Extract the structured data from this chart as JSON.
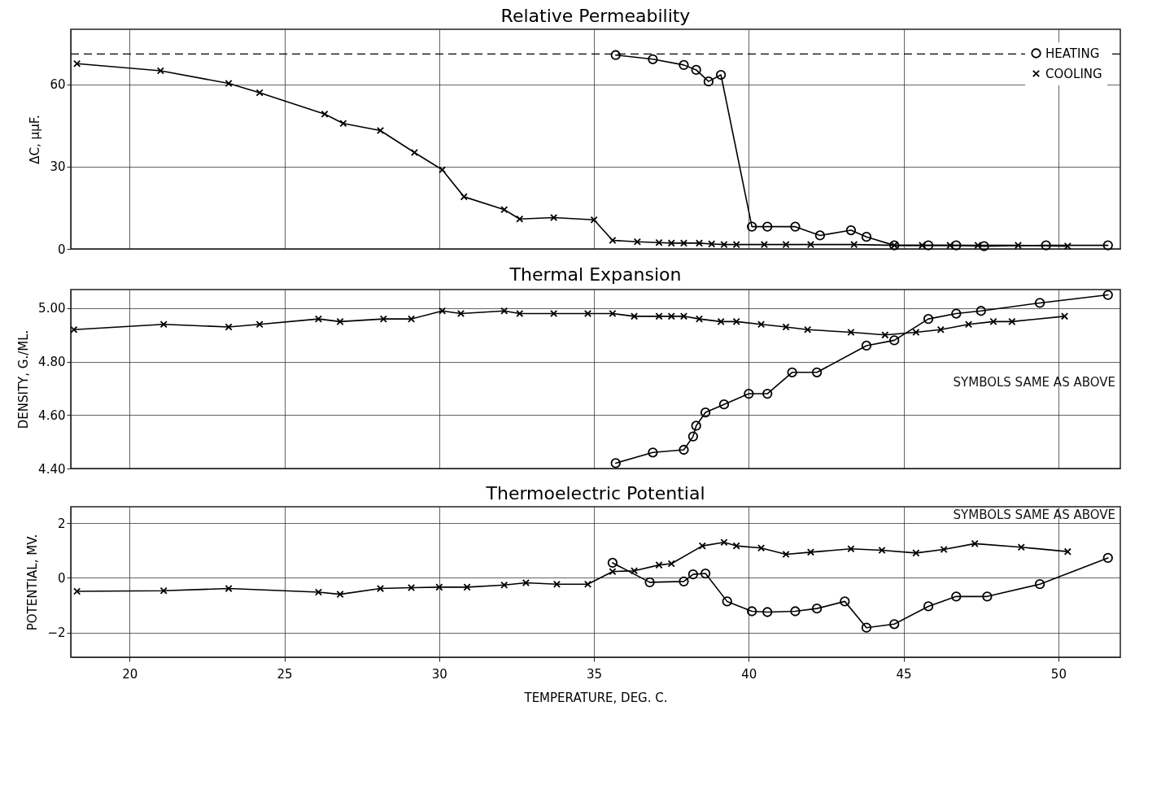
{
  "chart_data": [
    {
      "type": "line",
      "title": "Relative Permeability",
      "ylabel": "ΔC,   μμF.",
      "xlim": [
        18.1,
        52
      ],
      "xticks": [
        20,
        25,
        30,
        35,
        40,
        45,
        50
      ],
      "ylim": [
        0,
        80
      ],
      "yticks": [
        0,
        30,
        60
      ],
      "grid": true,
      "tick_labels": "y",
      "legend": "top right",
      "ref_lines": [
        {
          "axis": "y",
          "value": 71,
          "color": "#000000",
          "line_style": "dashed"
        }
      ],
      "series": [
        {
          "name": "HEATING",
          "color": "#000000",
          "marker": "circle",
          "x": [
            35.7,
            36.9,
            37.9,
            38.3,
            38.7,
            39.1,
            40.1,
            40.6,
            41.5,
            42.3,
            43.3,
            43.8,
            44.7,
            45.8,
            46.7,
            47.6,
            49.6,
            51.6
          ],
          "values": [
            70.6,
            69.1,
            67,
            65.2,
            61,
            63.4,
            8.1,
            8.1,
            8.1,
            4.9,
            6.8,
            4.4,
            1.3,
            1.3,
            1.3,
            1,
            1.3,
            1.3
          ]
        },
        {
          "name": "COOLING",
          "color": "#000000",
          "marker": "cross",
          "x": [
            18.3,
            21,
            23.2,
            24.2,
            26.3,
            26.9,
            28.1,
            29.2,
            30.1,
            30.8,
            32.1,
            32.6,
            33.7,
            35,
            35.6,
            36.4,
            37.1,
            37.5,
            37.9,
            38.4,
            38.8,
            39.2,
            39.6,
            40.5,
            41.2,
            42,
            43.4,
            44.7,
            45.6,
            46.5,
            47.4,
            48.7,
            50.3
          ],
          "values": [
            67.5,
            64.9,
            60.3,
            56.9,
            49.1,
            45.7,
            43.1,
            35.1,
            28.8,
            19,
            14.3,
            10.9,
            11.4,
            10.6,
            3.1,
            2.6,
            2.3,
            2.1,
            2.1,
            2.1,
            1.8,
            1.6,
            1.6,
            1.6,
            1.6,
            1.6,
            1.6,
            1.3,
            1.3,
            1.3,
            1.3,
            1.3,
            1
          ]
        }
      ]
    },
    {
      "type": "line",
      "title": "Thermal Expansion",
      "ylabel": "DENSITY, G./ML.",
      "xlim": [
        18.1,
        52
      ],
      "xticks": [
        20,
        25,
        30,
        35,
        40,
        45,
        50
      ],
      "ylim": [
        4.4,
        5.07
      ],
      "yticks": [
        {
          "value": 4.4,
          "label": "4.40"
        },
        {
          "value": 4.6,
          "label": "4.60"
        },
        {
          "value": 4.8,
          "label": "4.80"
        },
        {
          "value": 5,
          "label": "5.00"
        }
      ],
      "grid": true,
      "tick_labels": "y",
      "annotations": [
        "SYMBOLS SAME AS ABOVE"
      ],
      "series": [
        {
          "color": "#000000",
          "marker": "circle",
          "x": [
            35.7,
            36.9,
            37.9,
            38.2,
            38.3,
            38.6,
            39.2,
            40,
            40.6,
            41.4,
            42.2,
            43.8,
            44.7,
            45.8,
            46.7,
            47.5,
            49.4,
            51.6
          ],
          "values": [
            4.42,
            4.46,
            4.47,
            4.52,
            4.56,
            4.61,
            4.64,
            4.68,
            4.68,
            4.76,
            4.76,
            4.86,
            4.88,
            4.96,
            4.98,
            4.99,
            5.02,
            5.05
          ]
        },
        {
          "color": "#000000",
          "marker": "cross",
          "x": [
            18.2,
            21.1,
            23.2,
            24.2,
            26.1,
            26.8,
            28.2,
            29.1,
            30.1,
            30.7,
            32.1,
            32.6,
            33.7,
            34.8,
            35.6,
            36.3,
            37.1,
            37.5,
            37.9,
            38.4,
            39.1,
            39.6,
            40.4,
            41.2,
            41.9,
            43.3,
            44.4,
            45.4,
            46.2,
            47.1,
            47.9,
            48.5,
            50.2
          ],
          "values": [
            4.92,
            4.94,
            4.93,
            4.94,
            4.96,
            4.95,
            4.96,
            4.96,
            4.99,
            4.98,
            4.99,
            4.98,
            4.98,
            4.98,
            4.98,
            4.97,
            4.97,
            4.97,
            4.97,
            4.96,
            4.95,
            4.95,
            4.94,
            4.93,
            4.92,
            4.91,
            4.9,
            4.91,
            4.92,
            4.94,
            4.95,
            4.95,
            4.97
          ]
        }
      ]
    },
    {
      "type": "line",
      "title": "Thermoelectric Potential",
      "xlabel": "TEMPERATURE, DEG. C.",
      "ylabel": "POTENTIAL, MV.",
      "xlim": [
        18.1,
        52
      ],
      "xticks": [
        20,
        25,
        30,
        35,
        40,
        45,
        50
      ],
      "ylim": [
        -2.9,
        2.6
      ],
      "yticks": [
        -2,
        0,
        2
      ],
      "grid": true,
      "annotations": [
        "SYMBOLS SAME AS ABOVE"
      ],
      "series": [
        {
          "color": "#000000",
          "marker": "circle",
          "x": [
            35.6,
            36.8,
            37.9,
            38.2,
            38.6,
            39.3,
            40.1,
            40.6,
            41.5,
            42.2,
            43.1,
            43.8,
            44.7,
            45.8,
            46.7,
            47.7,
            49.4,
            51.6
          ],
          "values": [
            0.55,
            -0.16,
            -0.13,
            0.13,
            0.16,
            -0.86,
            -1.22,
            -1.25,
            -1.22,
            -1.12,
            -0.86,
            -1.82,
            -1.69,
            -1.04,
            -0.68,
            -0.68,
            -0.23,
            0.73
          ]
        },
        {
          "color": "#000000",
          "marker": "cross",
          "x": [
            18.3,
            21.1,
            23.2,
            26.1,
            26.8,
            28.1,
            29.1,
            30,
            30.9,
            32.1,
            32.8,
            33.8,
            34.8,
            35.6,
            36.3,
            37.1,
            37.5,
            38.5,
            39.2,
            39.6,
            40.4,
            41.2,
            42,
            43.3,
            44.3,
            45.4,
            46.3,
            47.3,
            48.8,
            50.3
          ],
          "values": [
            -0.49,
            -0.47,
            -0.39,
            -0.52,
            -0.6,
            -0.39,
            -0.36,
            -0.34,
            -0.34,
            -0.26,
            -0.18,
            -0.23,
            -0.23,
            0.23,
            0.26,
            0.47,
            0.52,
            1.17,
            1.3,
            1.17,
            1.09,
            0.86,
            0.94,
            1.06,
            1.01,
            0.91,
            1.04,
            1.25,
            1.12,
            0.96
          ]
        }
      ]
    }
  ]
}
